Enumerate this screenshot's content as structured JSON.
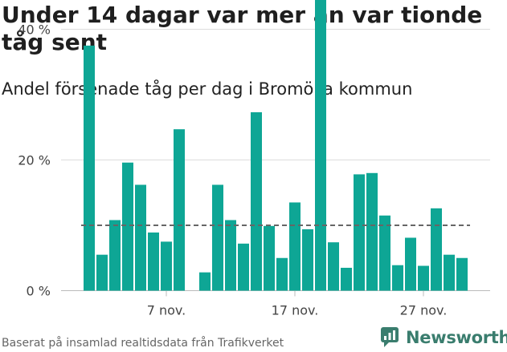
{
  "title": "Under 14 dagar var mer än var tionde tåg sent",
  "subtitle": "Andel försenade tåg per dag i Bromölla kommun",
  "footer": "Baserat på insamlad realtidsdata från Trafikverket",
  "logo": {
    "text": "Newsworthy",
    "icon": "newsworthy-logo-icon"
  },
  "colors": {
    "bar": "#0ea695",
    "reference_line": "#666666",
    "grid": "#dddddd",
    "logo": "#3a7d6e"
  },
  "chart_data": {
    "type": "bar",
    "x_dates": [
      "1 nov.",
      "2 nov.",
      "3 nov.",
      "4 nov.",
      "5 nov.",
      "6 nov.",
      "7 nov.",
      "8 nov.",
      "9 nov.",
      "10 nov.",
      "11 nov.",
      "12 nov.",
      "13 nov.",
      "14 nov.",
      "15 nov.",
      "16 nov.",
      "17 nov.",
      "18 nov.",
      "19 nov.",
      "20 nov.",
      "21 nov.",
      "22 nov.",
      "23 nov.",
      "24 nov.",
      "25 nov.",
      "26 nov.",
      "27 nov.",
      "28 nov.",
      "29 nov.",
      "30 nov."
    ],
    "values": [
      37.5,
      5.5,
      10.8,
      19.6,
      16.2,
      8.9,
      7.5,
      24.7,
      null,
      2.8,
      16.2,
      10.8,
      7.2,
      27.3,
      9.9,
      5.0,
      13.5,
      9.4,
      46.8,
      7.4,
      3.5,
      17.8,
      18.0,
      11.5,
      3.9,
      8.1,
      3.8,
      12.6,
      5.5,
      5.0
    ],
    "reference_line": 10,
    "ylim": [
      0,
      50
    ],
    "y_ticks": [
      0,
      20,
      40
    ],
    "y_tick_labels": [
      "0 %",
      "20 %",
      "40 %"
    ],
    "x_ticks": [
      "7 nov.",
      "17 nov.",
      "27 nov."
    ],
    "grid": true
  }
}
